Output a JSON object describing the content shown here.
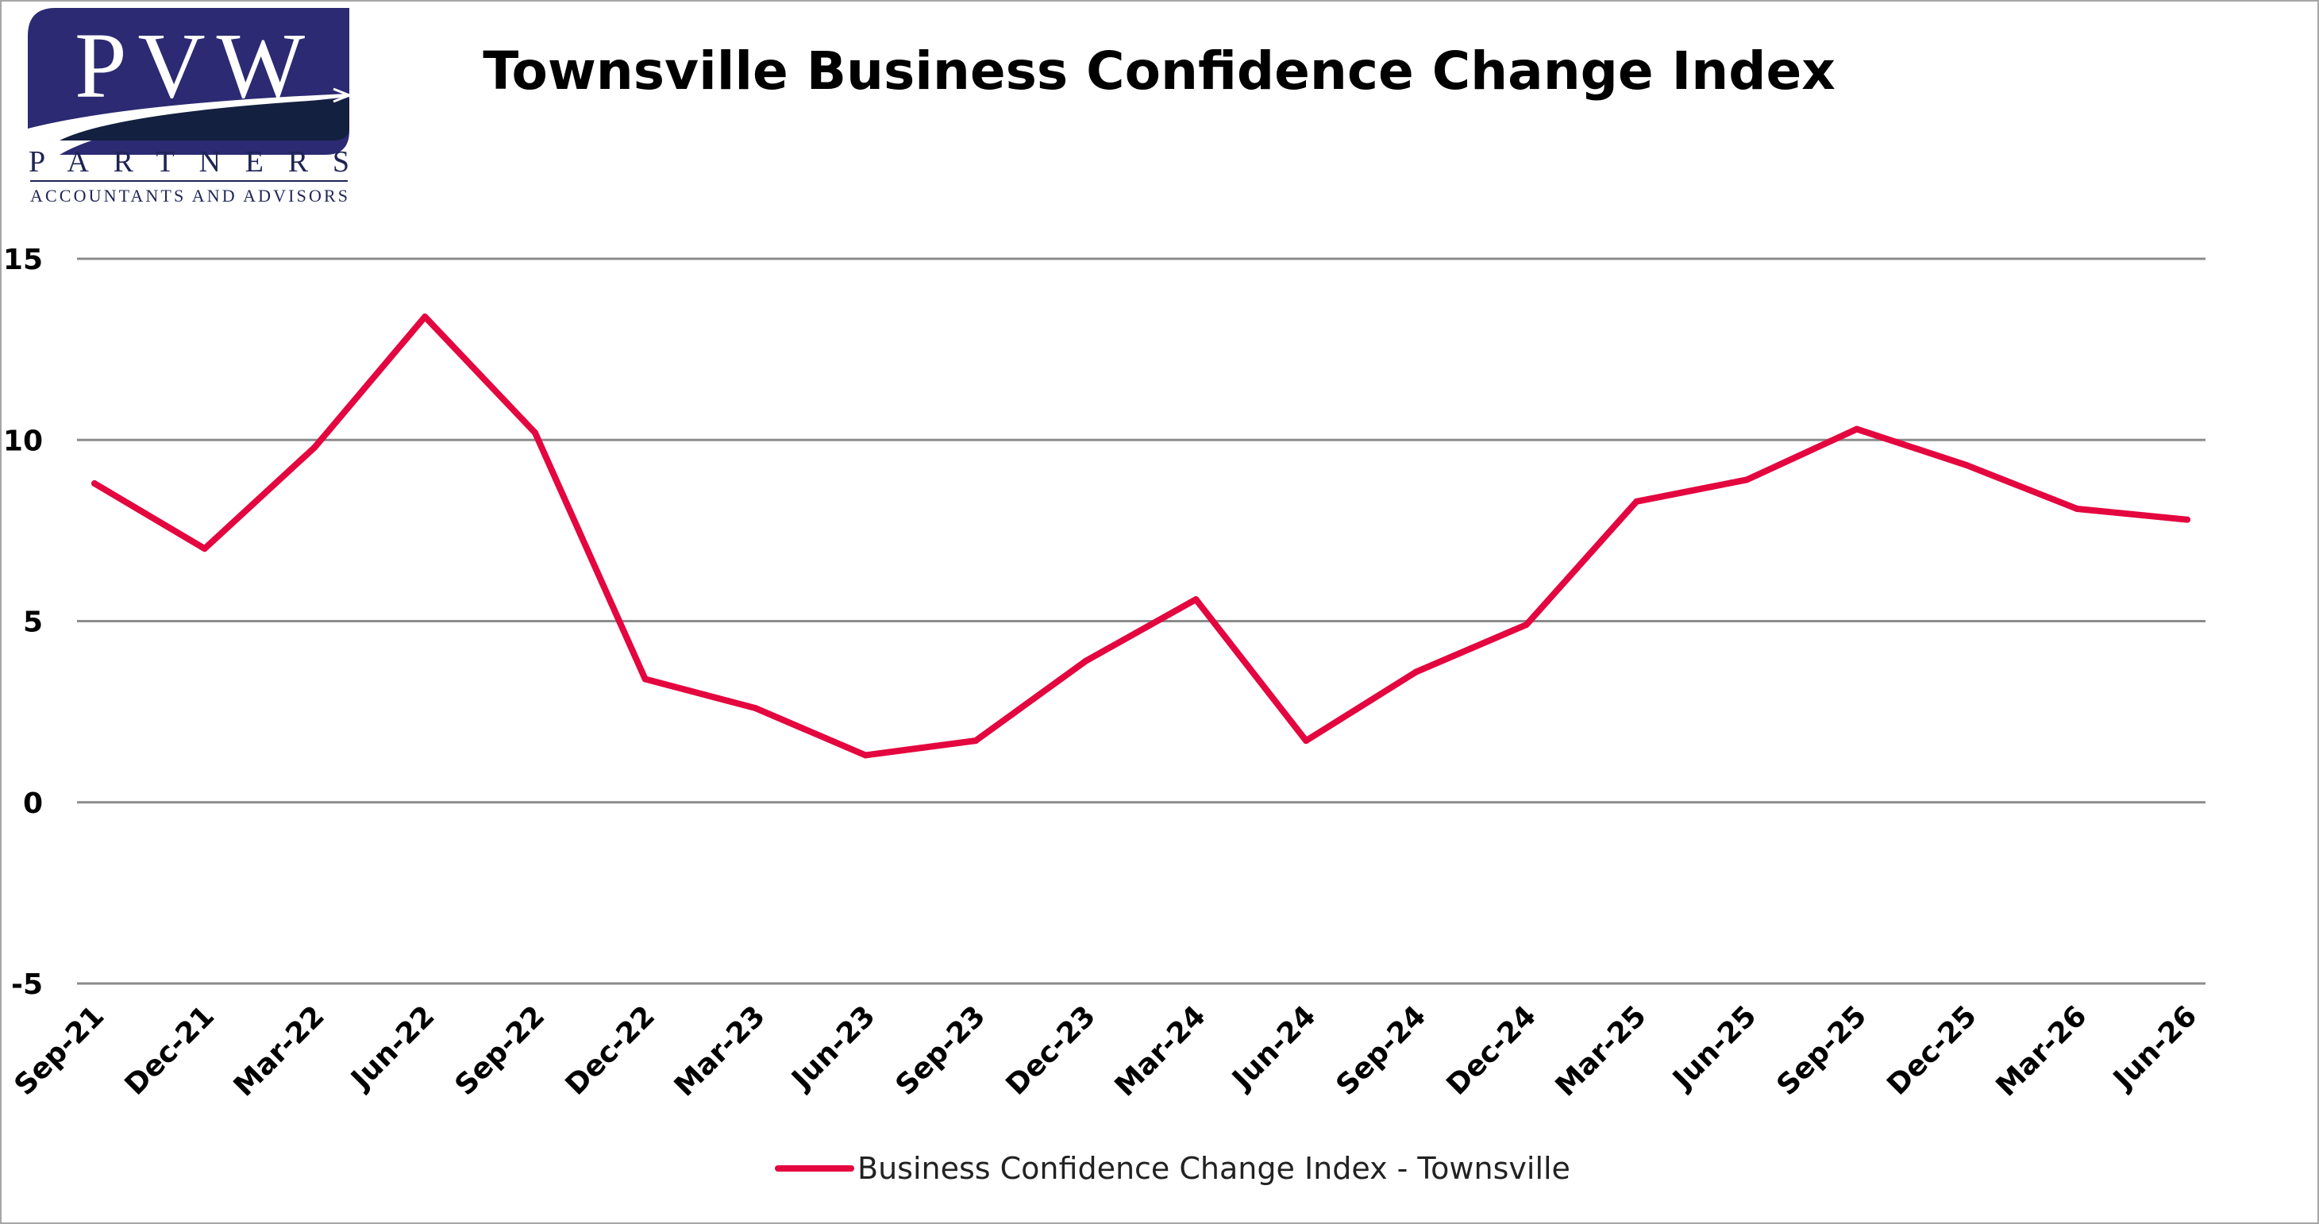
{
  "logo": {
    "main": "PVW",
    "sub": "PARTNERS",
    "tagline": "ACCOUNTANTS AND ADVISORS",
    "colors": {
      "blue": "#2b2a72",
      "navy": "#14203f"
    }
  },
  "chart_data": {
    "type": "line",
    "title": "Townsville Business Confidence Change Index",
    "xlabel": "",
    "ylabel": "",
    "ylim": [
      -5,
      15
    ],
    "yticks": [
      15,
      10,
      5,
      0,
      -5
    ],
    "grid": true,
    "legend_position": "bottom",
    "categories": [
      "Sep-21",
      "Dec-21",
      "Mar-22",
      "Jun-22",
      "Sep-22",
      "Dec-22",
      "Mar-23",
      "Jun-23",
      "Sep-23",
      "Dec-23",
      "Mar-24",
      "Jun-24",
      "Sep-24",
      "Dec-24",
      "Mar-25",
      "Jun-25",
      "Sep-25",
      "Dec-25",
      "Mar-26",
      "Jun-26"
    ],
    "series": [
      {
        "name": "Business Confidence Change Index - Townsville",
        "color": "#e4063f",
        "values": [
          8.8,
          7.0,
          9.8,
          13.4,
          10.2,
          3.4,
          2.6,
          1.3,
          1.7,
          3.9,
          5.6,
          1.7,
          3.6,
          4.9,
          8.3,
          8.9,
          10.3,
          9.3,
          8.1,
          7.8
        ]
      }
    ]
  }
}
